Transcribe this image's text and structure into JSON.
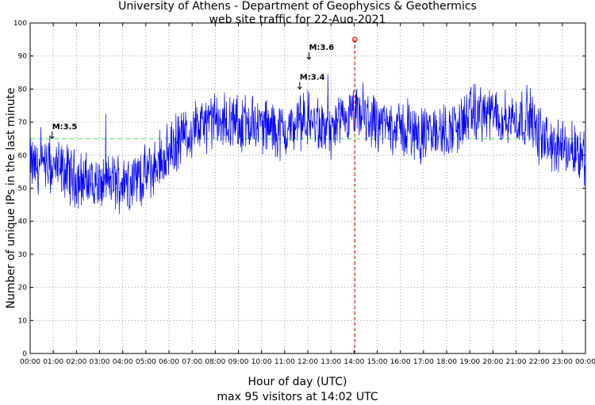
{
  "chart_data": {
    "type": "line",
    "title": "University of Athens - Department of Geophysics & Geothermics",
    "subtitle": "web site traffic for 22-Aug-2021",
    "xlabel": "Hour of day (UTC)",
    "footer": "max 95 visitors at 14:02 UTC",
    "ylabel": "Number of unique IPs in the last minute",
    "xlim": [
      0,
      24
    ],
    "ylim": [
      0,
      100
    ],
    "x_ticks": [
      "00:00",
      "01:00",
      "02:00",
      "03:00",
      "04:00",
      "05:00",
      "06:00",
      "07:00",
      "08:00",
      "09:00",
      "10:00",
      "11:00",
      "12:00",
      "13:00",
      "14:00",
      "15:00",
      "16:00",
      "17:00",
      "18:00",
      "19:00",
      "20:00",
      "21:00",
      "22:00",
      "23:00",
      "00:00"
    ],
    "y_ticks": [
      0,
      10,
      20,
      30,
      40,
      50,
      60,
      70,
      80,
      90,
      100
    ],
    "grid": true,
    "series": [
      {
        "values_note": "per 10-minute approximate traffic level (noisy series)",
        "x_hours": [
          0,
          0.5,
          1,
          1.5,
          2,
          2.5,
          3,
          3.5,
          4,
          4.5,
          5,
          5.5,
          6,
          6.5,
          7,
          7.5,
          8,
          8.5,
          9,
          9.5,
          10,
          10.5,
          11,
          11.5,
          12,
          12.5,
          13,
          13.5,
          14,
          14.5,
          15,
          15.5,
          16,
          16.5,
          17,
          17.5,
          18,
          18.5,
          19,
          19.5,
          20,
          20.5,
          21,
          21.5,
          22,
          22.5,
          23,
          23.5,
          24
        ],
        "values": [
          57,
          56,
          56,
          55,
          53,
          52,
          51,
          52,
          52,
          53,
          54,
          57,
          61,
          65,
          68,
          69,
          70,
          70,
          69,
          70,
          69,
          68,
          67,
          69,
          71,
          68,
          67,
          69,
          72,
          71,
          70,
          69,
          68,
          67,
          66,
          67,
          67,
          69,
          72,
          73,
          72,
          71,
          71,
          72,
          66,
          63,
          62,
          62,
          60
        ]
      }
    ],
    "reference_line": {
      "y": 65,
      "color": "#4dd94d"
    },
    "max_marker": {
      "x": 14.033,
      "y": 95,
      "color": "#cc0000"
    },
    "annotations": [
      {
        "text": "M:3.5",
        "x": 0.95,
        "y": 65
      },
      {
        "text": "M:3.4",
        "x": 11.65,
        "y": 80
      },
      {
        "text": "M:3.6",
        "x": 12.05,
        "y": 89
      }
    ],
    "line_color": "#0000ff"
  }
}
